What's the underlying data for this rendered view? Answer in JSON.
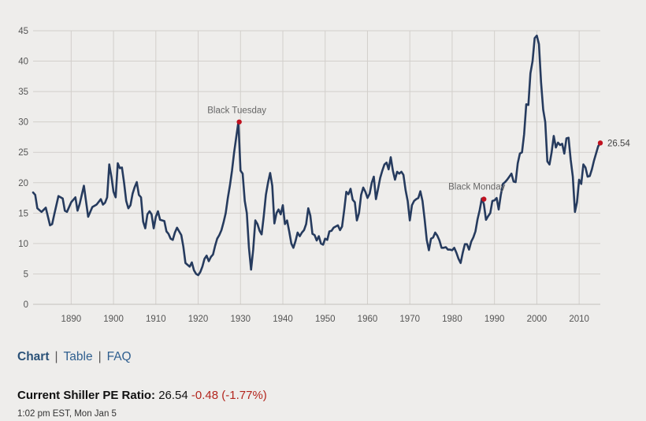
{
  "chart_data": {
    "type": "line",
    "title": "",
    "xlabel": "",
    "ylabel": "",
    "xlim": [
      1881,
      2015
    ],
    "ylim": [
      0,
      45
    ],
    "grid": true,
    "x_ticks": [
      1890,
      1900,
      1910,
      1920,
      1930,
      1940,
      1950,
      1960,
      1970,
      1980,
      1990,
      2000,
      2010
    ],
    "y_ticks": [
      0,
      5,
      10,
      15,
      20,
      25,
      30,
      35,
      40,
      45
    ],
    "line_color": "#263b5e",
    "marker_color": "#c0111f",
    "series": [
      {
        "points": [
          [
            1881,
            18.4
          ],
          [
            1881.5,
            18.0
          ],
          [
            1882,
            15.8
          ],
          [
            1883,
            15.2
          ],
          [
            1884,
            15.9
          ],
          [
            1885,
            13.0
          ],
          [
            1885.5,
            13.2
          ],
          [
            1886,
            14.8
          ],
          [
            1887,
            17.8
          ],
          [
            1888,
            17.4
          ],
          [
            1888.5,
            15.4
          ],
          [
            1889,
            15.2
          ],
          [
            1890,
            16.8
          ],
          [
            1891,
            17.6
          ],
          [
            1891.5,
            15.4
          ],
          [
            1892,
            16.5
          ],
          [
            1893,
            19.5
          ],
          [
            1894,
            14.4
          ],
          [
            1895,
            16.0
          ],
          [
            1896,
            16.4
          ],
          [
            1897,
            17.3
          ],
          [
            1897.5,
            16.4
          ],
          [
            1898,
            16.7
          ],
          [
            1898.5,
            17.6
          ],
          [
            1899,
            23.0
          ],
          [
            1899.5,
            21.0
          ],
          [
            1900,
            18.5
          ],
          [
            1900.5,
            17.6
          ],
          [
            1901,
            23.2
          ],
          [
            1901.5,
            22.4
          ],
          [
            1902,
            22.5
          ],
          [
            1902.5,
            20.0
          ],
          [
            1903,
            17.0
          ],
          [
            1903.5,
            15.8
          ],
          [
            1904,
            16.3
          ],
          [
            1904.5,
            18.2
          ],
          [
            1905,
            19.3
          ],
          [
            1905.5,
            20.1
          ],
          [
            1906,
            18.0
          ],
          [
            1906.5,
            17.6
          ],
          [
            1907,
            13.6
          ],
          [
            1907.5,
            12.5
          ],
          [
            1908,
            14.8
          ],
          [
            1908.5,
            15.3
          ],
          [
            1909,
            14.8
          ],
          [
            1909.5,
            12.5
          ],
          [
            1910,
            14.4
          ],
          [
            1910.5,
            15.3
          ],
          [
            1911,
            13.9
          ],
          [
            1912,
            13.7
          ],
          [
            1912.5,
            12.0
          ],
          [
            1913,
            11.6
          ],
          [
            1913.5,
            10.8
          ],
          [
            1914,
            10.6
          ],
          [
            1914.5,
            11.8
          ],
          [
            1915,
            12.6
          ],
          [
            1915.5,
            12.0
          ],
          [
            1916,
            11.4
          ],
          [
            1916.5,
            9.5
          ],
          [
            1917,
            6.8
          ],
          [
            1918,
            6.2
          ],
          [
            1918.5,
            6.9
          ],
          [
            1919,
            5.6
          ],
          [
            1919.5,
            5.0
          ],
          [
            1920,
            4.8
          ],
          [
            1920.5,
            5.3
          ],
          [
            1921,
            6.2
          ],
          [
            1921.5,
            7.5
          ],
          [
            1922,
            8.0
          ],
          [
            1922.5,
            7.1
          ],
          [
            1923,
            7.8
          ],
          [
            1923.5,
            8.2
          ],
          [
            1924,
            9.6
          ],
          [
            1924.5,
            10.8
          ],
          [
            1925,
            11.4
          ],
          [
            1925.5,
            12.2
          ],
          [
            1926,
            13.5
          ],
          [
            1926.5,
            15.0
          ],
          [
            1927,
            17.5
          ],
          [
            1927.5,
            19.6
          ],
          [
            1928,
            22.0
          ],
          [
            1928.5,
            25.0
          ],
          [
            1929,
            27.5
          ],
          [
            1929.5,
            30.0
          ],
          [
            1930,
            22.0
          ],
          [
            1930.5,
            21.5
          ],
          [
            1931,
            17.0
          ],
          [
            1931.5,
            15.0
          ],
          [
            1932,
            9.3
          ],
          [
            1932.5,
            5.7
          ],
          [
            1933,
            9.0
          ],
          [
            1933.5,
            13.8
          ],
          [
            1934,
            13.2
          ],
          [
            1934.5,
            12.1
          ],
          [
            1935,
            11.5
          ],
          [
            1935.5,
            14.5
          ],
          [
            1936,
            18.0
          ],
          [
            1936.5,
            20.0
          ],
          [
            1937,
            21.6
          ],
          [
            1937.5,
            19.5
          ],
          [
            1938,
            13.3
          ],
          [
            1938.5,
            15.0
          ],
          [
            1939,
            15.6
          ],
          [
            1939.5,
            14.8
          ],
          [
            1940,
            16.3
          ],
          [
            1940.5,
            13.2
          ],
          [
            1941,
            13.8
          ],
          [
            1941.5,
            12.0
          ],
          [
            1942,
            10.0
          ],
          [
            1942.5,
            9.3
          ],
          [
            1943,
            10.4
          ],
          [
            1943.5,
            11.8
          ],
          [
            1944,
            11.2
          ],
          [
            1944.5,
            11.8
          ],
          [
            1945,
            12.2
          ],
          [
            1945.5,
            13.2
          ],
          [
            1946,
            15.8
          ],
          [
            1946.5,
            14.6
          ],
          [
            1947,
            11.6
          ],
          [
            1947.5,
            11.4
          ],
          [
            1948,
            10.5
          ],
          [
            1948.5,
            11.2
          ],
          [
            1949,
            10.0
          ],
          [
            1949.5,
            9.8
          ],
          [
            1950,
            10.8
          ],
          [
            1950.5,
            10.6
          ],
          [
            1951,
            12.0
          ],
          [
            1951.5,
            12.1
          ],
          [
            1952,
            12.6
          ],
          [
            1952.5,
            12.8
          ],
          [
            1953,
            13.0
          ],
          [
            1953.5,
            12.2
          ],
          [
            1954,
            12.8
          ],
          [
            1954.5,
            15.5
          ],
          [
            1955,
            18.5
          ],
          [
            1955.5,
            18.1
          ],
          [
            1956,
            19.0
          ],
          [
            1956.5,
            17.2
          ],
          [
            1957,
            16.8
          ],
          [
            1957.5,
            13.8
          ],
          [
            1958,
            15.0
          ],
          [
            1958.5,
            18.0
          ],
          [
            1959,
            19.2
          ],
          [
            1959.5,
            18.5
          ],
          [
            1960,
            17.5
          ],
          [
            1960.5,
            18.2
          ],
          [
            1961,
            20.0
          ],
          [
            1961.5,
            21.0
          ],
          [
            1962,
            17.3
          ],
          [
            1962.5,
            19.0
          ],
          [
            1963,
            20.8
          ],
          [
            1963.5,
            22.0
          ],
          [
            1964,
            23.0
          ],
          [
            1964.5,
            23.3
          ],
          [
            1965,
            22.2
          ],
          [
            1965.5,
            24.2
          ],
          [
            1966,
            22.0
          ],
          [
            1966.5,
            20.5
          ],
          [
            1967,
            21.8
          ],
          [
            1967.5,
            21.5
          ],
          [
            1968,
            21.8
          ],
          [
            1968.5,
            21.3
          ],
          [
            1969,
            18.8
          ],
          [
            1969.5,
            17.0
          ],
          [
            1970,
            13.8
          ],
          [
            1970.5,
            16.3
          ],
          [
            1971,
            17.0
          ],
          [
            1971.5,
            17.3
          ],
          [
            1972,
            17.5
          ],
          [
            1972.5,
            18.6
          ],
          [
            1973,
            17.0
          ],
          [
            1973.5,
            14.0
          ],
          [
            1974,
            10.6
          ],
          [
            1974.5,
            8.9
          ],
          [
            1975,
            10.8
          ],
          [
            1975.5,
            11.0
          ],
          [
            1976,
            11.8
          ],
          [
            1976.5,
            11.3
          ],
          [
            1977,
            10.5
          ],
          [
            1977.5,
            9.3
          ],
          [
            1978,
            9.3
          ],
          [
            1978.5,
            9.4
          ],
          [
            1979,
            9.0
          ],
          [
            1979.5,
            9.0
          ],
          [
            1980,
            8.9
          ],
          [
            1980.5,
            9.3
          ],
          [
            1981,
            8.5
          ],
          [
            1981.5,
            7.5
          ],
          [
            1982,
            6.8
          ],
          [
            1982.5,
            8.5
          ],
          [
            1983,
            9.9
          ],
          [
            1983.5,
            9.9
          ],
          [
            1984,
            9.0
          ],
          [
            1984.5,
            10.3
          ],
          [
            1985,
            11.0
          ],
          [
            1985.5,
            12.0
          ],
          [
            1986,
            14.0
          ],
          [
            1986.5,
            15.5
          ],
          [
            1987,
            17.4
          ],
          [
            1987.5,
            16.5
          ],
          [
            1988,
            13.9
          ],
          [
            1988.5,
            14.5
          ],
          [
            1989,
            15.0
          ],
          [
            1989.5,
            17.0
          ],
          [
            1990,
            17.1
          ],
          [
            1990.5,
            17.5
          ],
          [
            1991,
            15.6
          ],
          [
            1991.5,
            18.0
          ],
          [
            1992,
            19.8
          ],
          [
            1992.5,
            20.1
          ],
          [
            1993,
            20.5
          ],
          [
            1993.5,
            21.0
          ],
          [
            1994,
            21.5
          ],
          [
            1994.5,
            20.2
          ],
          [
            1995,
            20.1
          ],
          [
            1995.5,
            23.2
          ],
          [
            1996,
            24.8
          ],
          [
            1996.5,
            25.0
          ],
          [
            1997,
            28.0
          ],
          [
            1997.5,
            32.9
          ],
          [
            1998,
            32.8
          ],
          [
            1998.5,
            38.0
          ],
          [
            1999,
            40.0
          ],
          [
            1999.5,
            43.8
          ],
          [
            2000,
            44.2
          ],
          [
            2000.5,
            42.8
          ],
          [
            2001,
            36.5
          ],
          [
            2001.5,
            32.0
          ],
          [
            2002,
            30.0
          ],
          [
            2002.5,
            23.5
          ],
          [
            2003,
            23.0
          ],
          [
            2003.5,
            25.0
          ],
          [
            2004,
            27.7
          ],
          [
            2004.5,
            25.8
          ],
          [
            2005,
            26.6
          ],
          [
            2005.5,
            26.2
          ],
          [
            2006,
            26.4
          ],
          [
            2006.5,
            24.8
          ],
          [
            2007,
            27.3
          ],
          [
            2007.5,
            27.4
          ],
          [
            2008,
            23.8
          ],
          [
            2008.5,
            21.0
          ],
          [
            2009,
            15.2
          ],
          [
            2009.5,
            16.8
          ],
          [
            2010,
            20.5
          ],
          [
            2010.5,
            19.8
          ],
          [
            2011,
            23.0
          ],
          [
            2011.5,
            22.5
          ],
          [
            2012,
            21.0
          ],
          [
            2012.5,
            21.1
          ],
          [
            2013,
            22.2
          ],
          [
            2013.5,
            23.6
          ],
          [
            2014,
            24.8
          ],
          [
            2014.5,
            26.0
          ],
          [
            2015,
            26.54
          ]
        ]
      }
    ],
    "annotations": [
      {
        "label": "Black Tuesday",
        "x": 1929.7,
        "y": 30.0
      },
      {
        "label": "Black Monday",
        "x": 1987.5,
        "y": 17.3
      },
      {
        "label": "26.54",
        "x": 2015,
        "y": 26.54
      }
    ]
  },
  "nav": {
    "chart": "Chart",
    "sep": "|",
    "table": "Table",
    "faq": "FAQ"
  },
  "current": {
    "label": "Current Shiller PE Ratio:",
    "value": "26.54",
    "change": "-0.48 (-1.77%)"
  },
  "timestamp": "1:02 pm EST, Mon Jan 5"
}
